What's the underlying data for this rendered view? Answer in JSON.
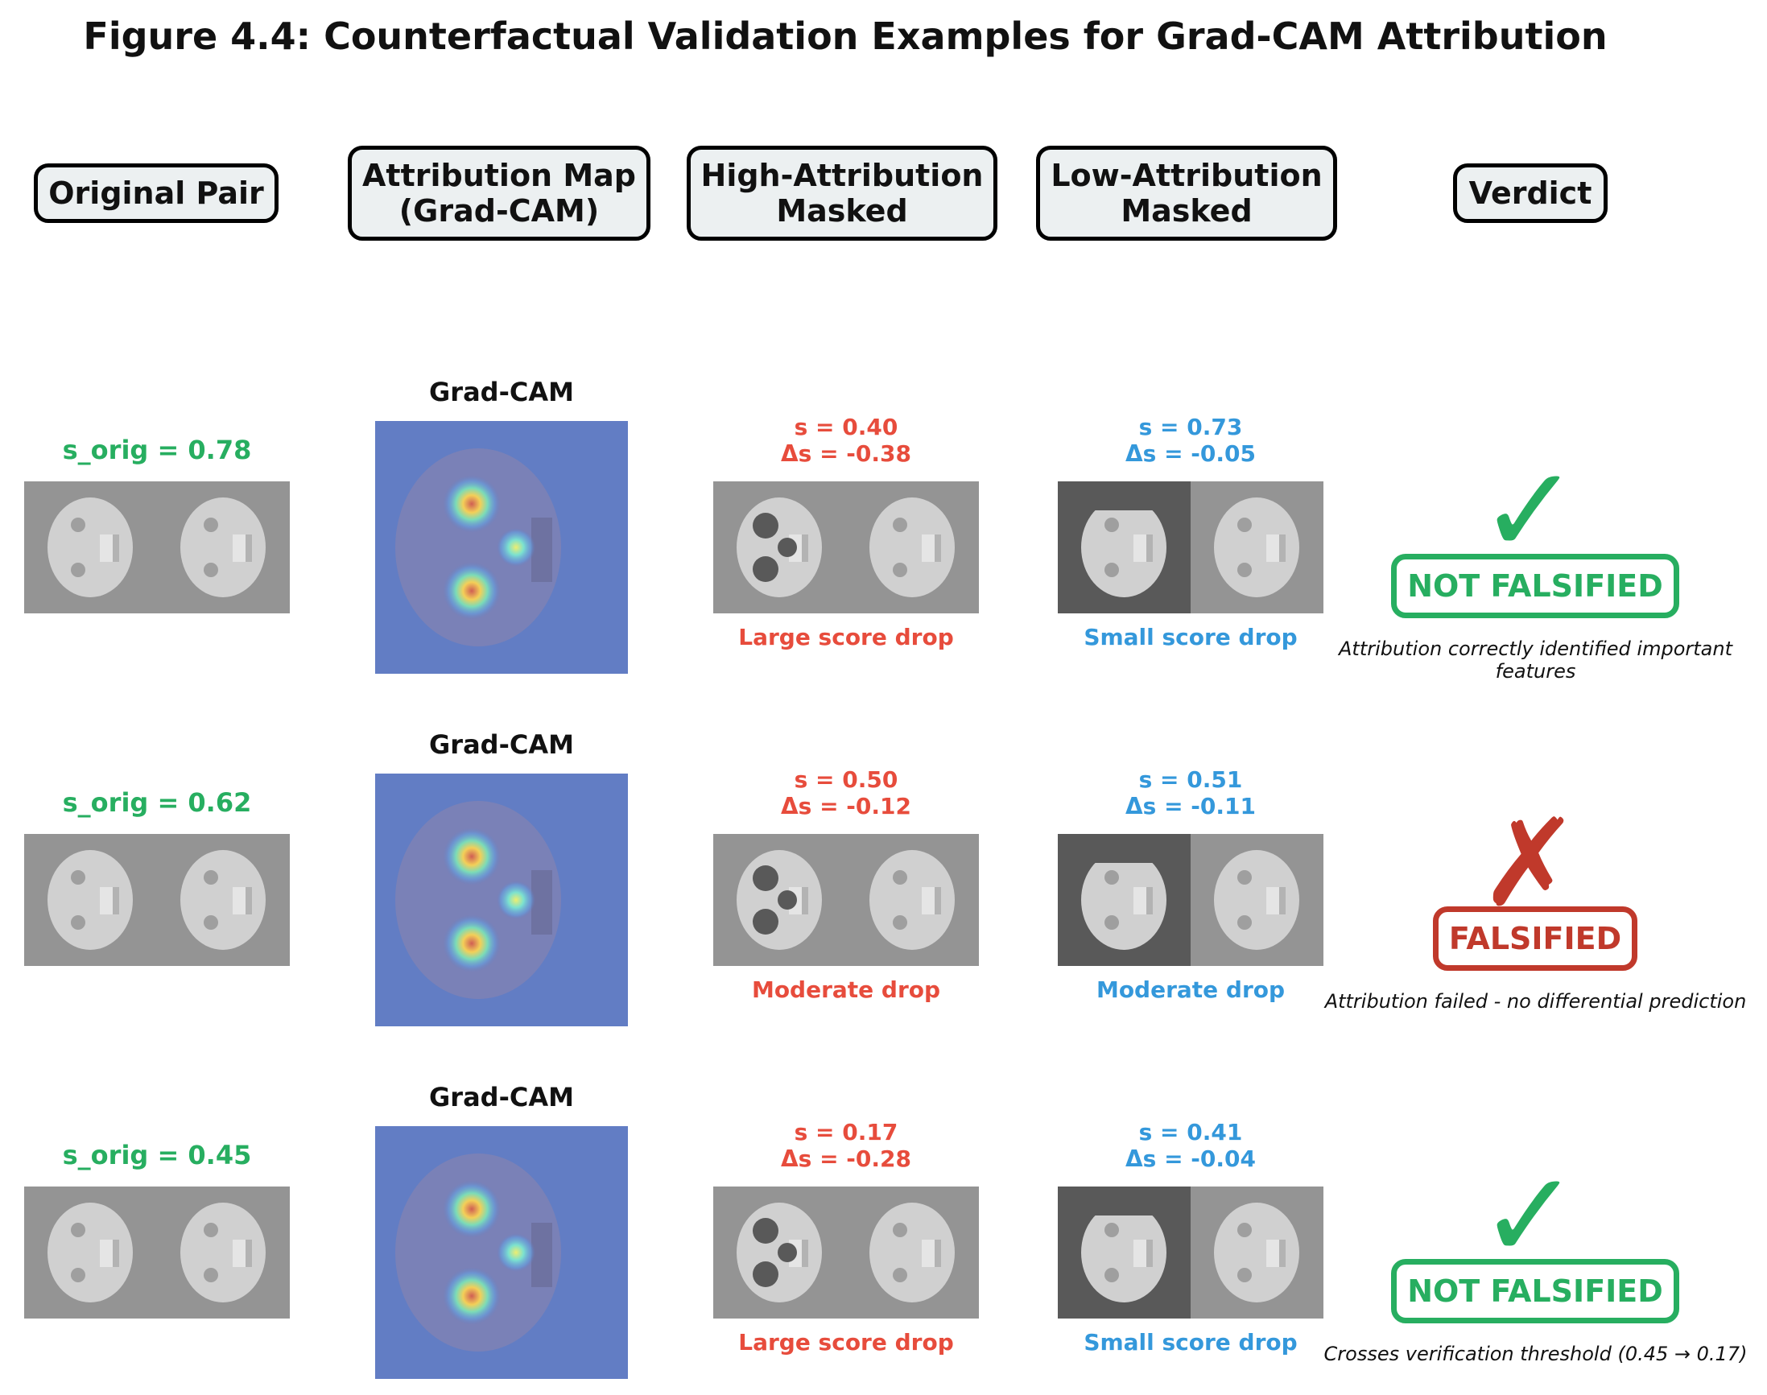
{
  "title": "Figure 4.4: Counterfactual Validation Examples for Grad-CAM Attribution",
  "headers": {
    "original": "Original Pair",
    "attribution": "Attribution Map\n(Grad-CAM)",
    "high": "High-Attribution\nMasked",
    "low": "Low-Attribution\nMasked",
    "verdict": "Verdict"
  },
  "rows": [
    {
      "s_orig": "s_orig = 0.78",
      "method": "Grad-CAM",
      "high": "s = 0.40\nΔs = -0.38",
      "high_caption": "Large score drop",
      "low": "s = 0.73\nΔs = -0.05",
      "low_caption": "Small score drop",
      "mark": "✓",
      "verdict": "NOT FALSIFIED",
      "note": "Attribution correctly identified important\nfeatures",
      "verdict_color": "#27ae60"
    },
    {
      "s_orig": "s_orig = 0.62",
      "method": "Grad-CAM",
      "high": "s = 0.50\nΔs = -0.12",
      "high_caption": "Moderate drop",
      "low": "s = 0.51\nΔs = -0.11",
      "low_caption": "Moderate drop",
      "mark": "✗",
      "verdict": "FALSIFIED",
      "note": "Attribution failed - no differential prediction",
      "verdict_color": "#c0392b"
    },
    {
      "s_orig": "s_orig = 0.45",
      "method": "Grad-CAM",
      "high": "s = 0.17\nΔs = -0.28",
      "high_caption": "Large score drop",
      "low": "s = 0.41\nΔs = -0.04",
      "low_caption": "Small score drop",
      "mark": "✓",
      "verdict": "NOT FALSIFIED",
      "note": "Crosses verification threshold (0.45 → 0.17)",
      "verdict_color": "#27ae60"
    }
  ]
}
